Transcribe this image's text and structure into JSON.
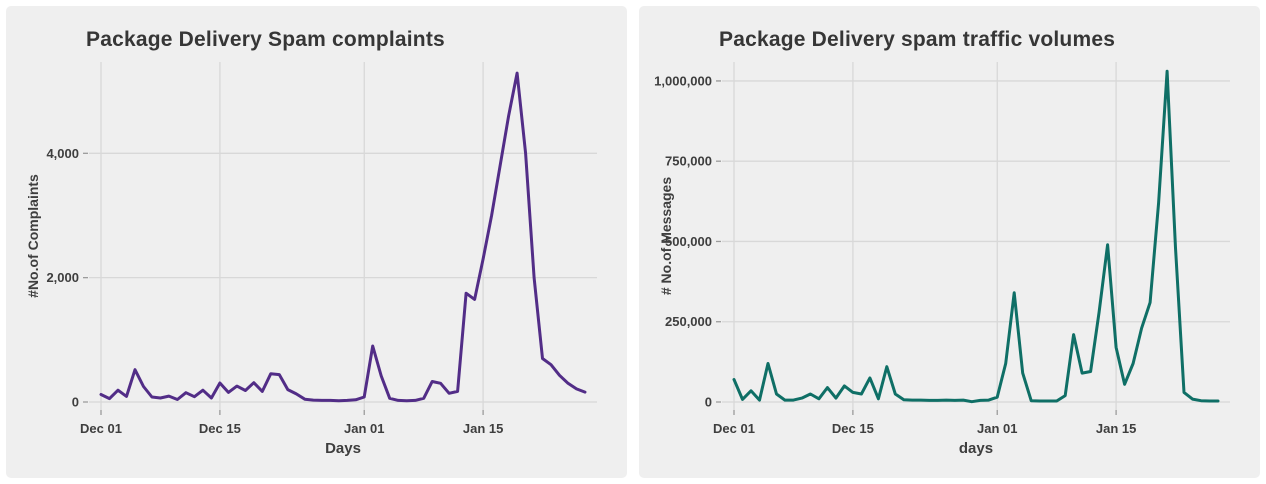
{
  "figure": {
    "background": "#ffffff",
    "panel_background": "#efefef",
    "grid_color": "#d8d8d8",
    "tick_color": "#9b9b9b",
    "text_color": "#3e3e3e"
  },
  "chart_data": [
    {
      "type": "line",
      "title": "Package Delivery Spam complaints",
      "xlabel": "Days",
      "ylabel": "#No.of Complaints",
      "series_name": "complaints",
      "line_color": "#522d87",
      "grid": true,
      "legend": "none",
      "x": [
        "Dec 01",
        "Dec 02",
        "Dec 03",
        "Dec 04",
        "Dec 05",
        "Dec 06",
        "Dec 07",
        "Dec 08",
        "Dec 09",
        "Dec 10",
        "Dec 11",
        "Dec 12",
        "Dec 13",
        "Dec 14",
        "Dec 15",
        "Dec 16",
        "Dec 17",
        "Dec 18",
        "Dec 19",
        "Dec 20",
        "Dec 21",
        "Dec 22",
        "Dec 23",
        "Dec 24",
        "Dec 25",
        "Dec 26",
        "Dec 27",
        "Dec 28",
        "Dec 29",
        "Dec 30",
        "Dec 31",
        "Jan 01",
        "Jan 02",
        "Jan 03",
        "Jan 04",
        "Jan 05",
        "Jan 06",
        "Jan 07",
        "Jan 08",
        "Jan 09",
        "Jan 10",
        "Jan 11",
        "Jan 12",
        "Jan 13",
        "Jan 14",
        "Jan 15",
        "Jan 16",
        "Jan 17",
        "Jan 18",
        "Jan 19",
        "Jan 20",
        "Jan 21",
        "Jan 22",
        "Jan 23",
        "Jan 24",
        "Jan 25",
        "Jan 26",
        "Jan 27"
      ],
      "values": [
        120,
        55,
        190,
        90,
        520,
        250,
        80,
        65,
        95,
        40,
        150,
        85,
        190,
        65,
        305,
        155,
        255,
        185,
        310,
        170,
        455,
        440,
        200,
        130,
        45,
        30,
        25,
        25,
        20,
        25,
        35,
        80,
        900,
        420,
        60,
        25,
        20,
        25,
        60,
        330,
        300,
        140,
        170,
        1750,
        1650,
        2300,
        3000,
        3800,
        4600,
        5290,
        4000,
        2000,
        700,
        600,
        430,
        300,
        210,
        160
      ],
      "x_ticks": {
        "days": [
          0,
          14,
          31,
          45
        ],
        "labels": [
          "Dec 01",
          "Dec 15",
          "Jan 01",
          "Jan 15"
        ]
      },
      "y_ticks": {
        "values": [
          0,
          2000,
          4000
        ],
        "labels": [
          "0",
          "2,000",
          "4,000"
        ]
      },
      "ylim": [
        0,
        5340
      ]
    },
    {
      "type": "line",
      "title": "Package Delivery spam traffic volumes",
      "xlabel": "days",
      "ylabel": "# No.of Messages",
      "series_name": "traffic",
      "line_color": "#0f6f66",
      "grid": true,
      "legend": "none",
      "x": [
        "Dec 01",
        "Dec 02",
        "Dec 03",
        "Dec 04",
        "Dec 05",
        "Dec 06",
        "Dec 07",
        "Dec 08",
        "Dec 09",
        "Dec 10",
        "Dec 11",
        "Dec 12",
        "Dec 13",
        "Dec 14",
        "Dec 15",
        "Dec 16",
        "Dec 17",
        "Dec 18",
        "Dec 19",
        "Dec 20",
        "Dec 21",
        "Dec 22",
        "Dec 23",
        "Dec 24",
        "Dec 25",
        "Dec 26",
        "Dec 27",
        "Dec 28",
        "Dec 29",
        "Dec 30",
        "Dec 31",
        "Jan 01",
        "Jan 02",
        "Jan 03",
        "Jan 04",
        "Jan 05",
        "Jan 06",
        "Jan 07",
        "Jan 08",
        "Jan 09",
        "Jan 10",
        "Jan 11",
        "Jan 12",
        "Jan 13",
        "Jan 14",
        "Jan 15",
        "Jan 16",
        "Jan 17",
        "Jan 18",
        "Jan 19",
        "Jan 20",
        "Jan 21",
        "Jan 22",
        "Jan 23",
        "Jan 24",
        "Jan 25",
        "Jan 26",
        "Jan 27"
      ],
      "values": [
        70000,
        8000,
        35000,
        6000,
        120000,
        25000,
        6000,
        6000,
        12000,
        25000,
        10000,
        45000,
        12000,
        50000,
        30000,
        25000,
        75000,
        10000,
        110000,
        25000,
        7000,
        6000,
        6000,
        5000,
        5000,
        6000,
        5000,
        6000,
        1000,
        5000,
        6000,
        15000,
        120000,
        340000,
        90000,
        4000,
        3000,
        3000,
        3000,
        20000,
        210000,
        90000,
        95000,
        280000,
        490000,
        170000,
        55000,
        120000,
        230000,
        310000,
        620000,
        1030000,
        480000,
        30000,
        9000,
        4000,
        3000,
        3000
      ],
      "x_ticks": {
        "days": [
          0,
          14,
          31,
          45
        ],
        "labels": [
          "Dec 01",
          "Dec 15",
          "Jan 01",
          "Jan 15"
        ]
      },
      "y_ticks": {
        "values": [
          0,
          250000,
          500000,
          750000,
          1000000
        ],
        "labels": [
          "0",
          "250,000",
          "500,000",
          "750,000",
          "1,000,000"
        ]
      },
      "ylim": [
        0,
        1034000
      ]
    }
  ]
}
